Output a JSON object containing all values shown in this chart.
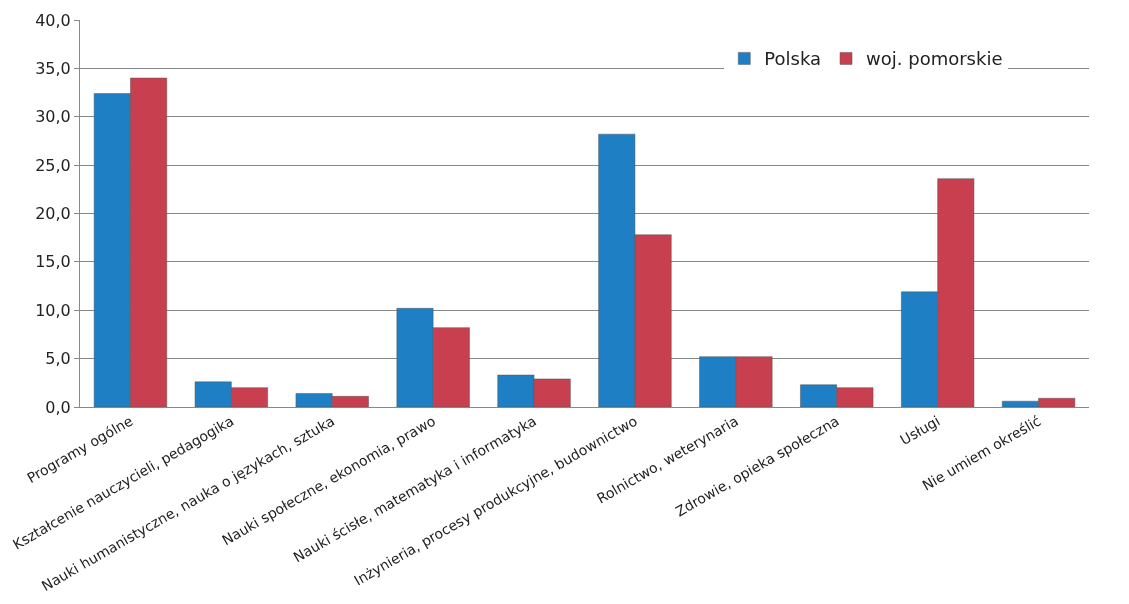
{
  "chart_data": {
    "type": "bar",
    "categories": [
      "Programy ogólne",
      "Kształcenie nauczycieli, pedagogika",
      "Nauki humanistyczne, nauka o językach, sztuka",
      "Nauki społeczne, ekonomia, prawo",
      "Nauki ścisłe, matematyka i informatyka",
      "Inżynieria, procesy produkcyjne, budownictwo",
      "Rolnictwo, weterynaria",
      "Zdrowie, opieka społeczna",
      "Usługi",
      "Nie umiem określić"
    ],
    "series": [
      {
        "name": "Polska",
        "color": "#1f7fc4",
        "values": [
          32.4,
          2.6,
          1.4,
          10.2,
          3.3,
          28.2,
          5.2,
          2.3,
          11.9,
          0.6
        ]
      },
      {
        "name": "woj. pomorskie",
        "color": "#c8404f",
        "values": [
          34.0,
          2.0,
          1.1,
          8.2,
          2.9,
          17.8,
          5.2,
          2.0,
          23.6,
          0.9
        ]
      }
    ],
    "ylim": [
      0,
      40
    ],
    "yticks": [
      {
        "value": 0,
        "label": "0,0"
      },
      {
        "value": 5,
        "label": "5,0"
      },
      {
        "value": 10,
        "label": "10,0"
      },
      {
        "value": 15,
        "label": "15,0"
      },
      {
        "value": 20,
        "label": "20,0"
      },
      {
        "value": 25,
        "label": "25,0"
      },
      {
        "value": 30,
        "label": "30,0"
      },
      {
        "value": 35,
        "label": "35,0"
      },
      {
        "value": 40,
        "label": "40,0"
      }
    ],
    "grid": "y",
    "legend": "top right"
  }
}
